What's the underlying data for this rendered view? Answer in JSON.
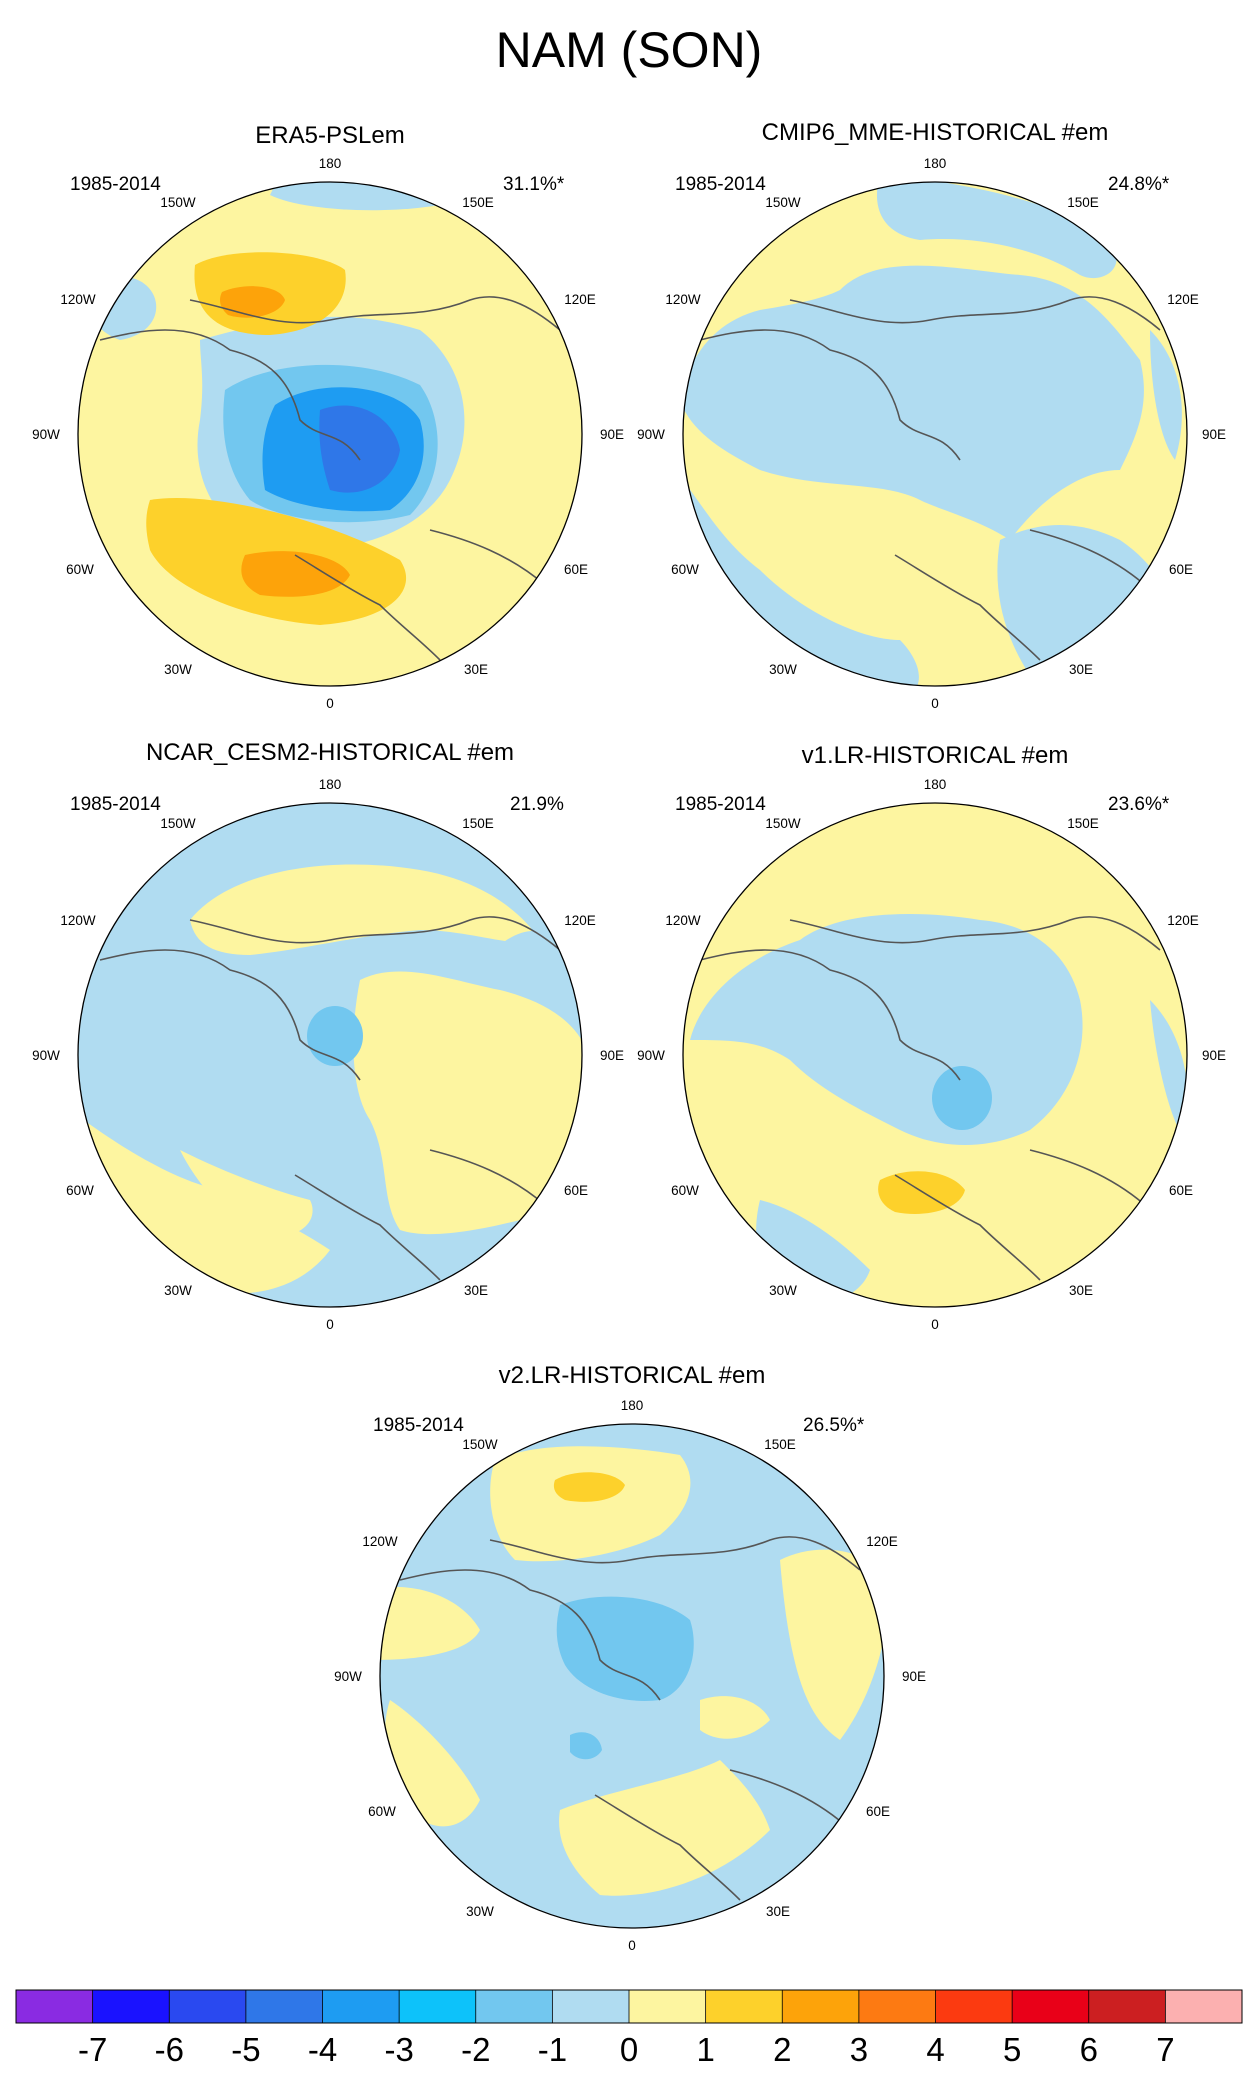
{
  "chart_data": {
    "type": "heatmap",
    "title": "NAM (SON)",
    "projection": "north polar stereographic",
    "longitude_labels": [
      "180",
      "150E",
      "120E",
      "90E",
      "60E",
      "30E",
      "0",
      "30W",
      "60W",
      "90W",
      "120W",
      "150W"
    ],
    "panels": [
      {
        "title": "ERA5-PSLem",
        "period": "1985-2014",
        "variance_explained": "31.1%*",
        "pattern": "negative anomaly over the Arctic and Greenland (min about -5); positive anomalies over the North Pacific (about +3) and the North Atlantic / Europe (about +4)"
      },
      {
        "title": "CMIP6_MME-HISTORICAL  #em",
        "period": "1985-2014",
        "variance_explained": "24.8%*",
        "pattern": "weak negative (0 to -1) over the Arctic; weak positive (0 to 1) over the North Pacific, North Atlantic and Europe"
      },
      {
        "title": "NCAR_CESM2-HISTORICAL  #em",
        "period": "1985-2014",
        "variance_explained": "21.9%",
        "pattern": "negative (-1 to -2) over the Arctic; weak positive (0 to 1) over Eurasia, North America and the Pacific"
      },
      {
        "title": "v1.LR-HISTORICAL  #em",
        "period": "1985-2014",
        "variance_explained": "23.6%*",
        "pattern": "negative (-1 to -2) over the Arctic; positive (about +2) over western Europe"
      },
      {
        "title": "v2.LR-HISTORICAL  #em",
        "period": "1985-2014",
        "variance_explained": "26.5%*",
        "pattern": "negative (-1 to -2) over the Arctic; positive (about +2) over the North Pacific"
      }
    ],
    "colorbar": {
      "tick_labels": [
        "-7",
        "-6",
        "-5",
        "-4",
        "-3",
        "-2",
        "-1",
        "0",
        "1",
        "2",
        "3",
        "4",
        "5",
        "6",
        "7"
      ],
      "colors": [
        "#8a2be2",
        "#1a12ff",
        "#2a49f0",
        "#2f77e8",
        "#1e9cf2",
        "#0dc2fa",
        "#72c7ef",
        "#b0dcf1",
        "#fdf5a0",
        "#fdd12b",
        "#fda30a",
        "#fd7a12",
        "#fc3a10",
        "#e90018",
        "#cc1f21",
        "#fcb0b0"
      ]
    }
  }
}
